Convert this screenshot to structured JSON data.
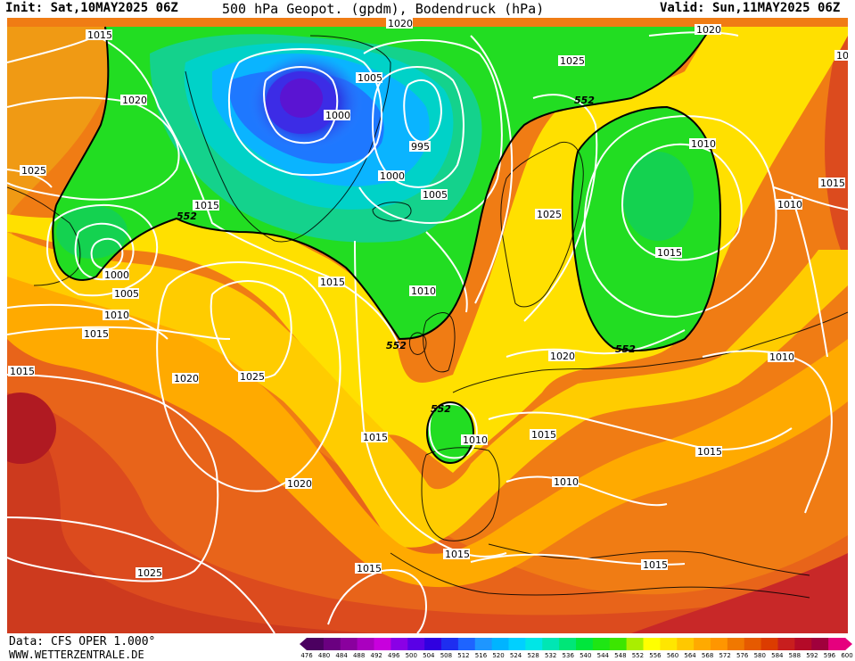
{
  "header": {
    "init": "Init: Sat,10MAY2025 06Z",
    "title": "500 hPa Geopot. (gpdm), Bodendruck (hPa)",
    "valid": "Valid: Sun,11MAY2025 06Z"
  },
  "footer": {
    "data_source": "Data: CFS OPER 1.000°",
    "website": "WWW.WETTERZENTRALE.DE"
  },
  "colorbar": {
    "labels": [
      "476",
      "480",
      "484",
      "488",
      "492",
      "496",
      "500",
      "504",
      "508",
      "512",
      "516",
      "520",
      "524",
      "528",
      "532",
      "536",
      "540",
      "544",
      "548",
      "552",
      "556",
      "560",
      "564",
      "568",
      "572",
      "576",
      "580",
      "584",
      "588",
      "592",
      "596",
      "600"
    ],
    "colors": [
      "#4b0060",
      "#6a0080",
      "#8a009e",
      "#aa00bf",
      "#c800dd",
      "#8a00e6",
      "#5a00e6",
      "#3000e0",
      "#1e2ef0",
      "#1e64ff",
      "#1e96ff",
      "#00b4ff",
      "#00d0ff",
      "#00e6e6",
      "#00e6b4",
      "#00e678",
      "#00e63c",
      "#1ee614",
      "#3ce600",
      "#aaee00",
      "#ffff00",
      "#ffe600",
      "#ffc800",
      "#ffaa00",
      "#ff9600",
      "#f07800",
      "#e65a00",
      "#dc3c00",
      "#c81e1e",
      "#b40a28",
      "#a0003c",
      "#e6007e"
    ]
  },
  "map_labels": {
    "isobars": [
      "1015",
      "1020",
      "1025",
      "1020",
      "1015",
      "1010",
      "1005",
      "1000",
      "995",
      "1000",
      "1005",
      "1000",
      "1005",
      "1015",
      "1015",
      "1010",
      "1025",
      "1025",
      "1015",
      "1010",
      "1015",
      "1010",
      "1020",
      "1015",
      "1010",
      "1020",
      "1010",
      "1015",
      "1015",
      "1010",
      "1015",
      "1015",
      "1015",
      "1015",
      "1025",
      "1025",
      "1020",
      "1020",
      "1010",
      "1010",
      "1010",
      "1005",
      "1000",
      "10"
    ],
    "geopotential": [
      "552",
      "552",
      "552",
      "552",
      "552",
      "552"
    ]
  }
}
